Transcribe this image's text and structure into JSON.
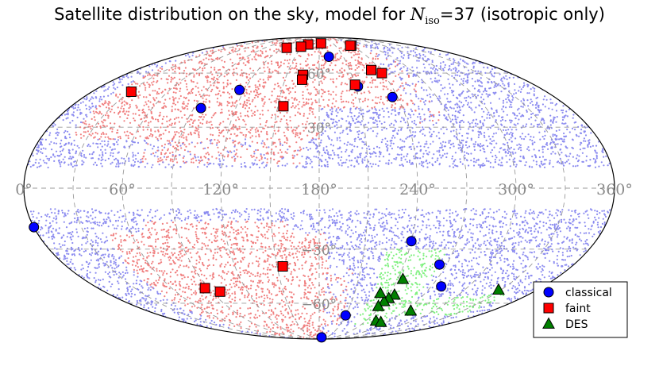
{
  "chart_data": {
    "type": "scatter",
    "projection": "mollweide",
    "title": {
      "prefix": "Satellite distribution on the sky, model for ",
      "symbol": "N",
      "subscript": "iso",
      "suffix": "=37 (isotropic only)"
    },
    "xlabel": "",
    "ylabel": "",
    "grid": true,
    "legend_position": "lower-right",
    "lon_ticks": [
      {
        "value": 360,
        "label": "360°"
      },
      {
        "value": 300,
        "label": "300°"
      },
      {
        "value": 240,
        "label": "240°"
      },
      {
        "value": 180,
        "label": "180°"
      },
      {
        "value": 120,
        "label": "120°"
      },
      {
        "value": 60,
        "label": "60°"
      },
      {
        "value": 0,
        "label": "0°"
      }
    ],
    "lat_ticks": [
      {
        "value": 60,
        "label": "60°"
      },
      {
        "value": 30,
        "label": "30°"
      },
      {
        "value": -30,
        "label": "−30°"
      },
      {
        "value": -60,
        "label": "−60°"
      }
    ],
    "avoidance_zone_deg": 10,
    "background_samples": {
      "blue_color": "#8c8cf0",
      "red_color": "#f08080",
      "green_color": "#80f080"
    },
    "series": [
      {
        "name": "classical",
        "marker": "circle",
        "color": "#0000ff",
        "points": [
          {
            "lon": 192,
            "lat": 71
          },
          {
            "lon": 236,
            "lat": 46
          },
          {
            "lon": 212,
            "lat": 52
          },
          {
            "lon": 116,
            "lat": 50
          },
          {
            "lon": 95,
            "lat": 40
          },
          {
            "lon": 0,
            "lat": -19
          },
          {
            "lon": 240,
            "lat": -26
          },
          {
            "lon": 265,
            "lat": -38
          },
          {
            "lon": 278,
            "lat": -50
          },
          {
            "lon": 210,
            "lat": -68
          },
          {
            "lon": 190,
            "lat": -87
          }
        ]
      },
      {
        "name": "faint",
        "marker": "square",
        "color": "#ff0000",
        "points": [
          {
            "lon": 240,
            "lat": 80
          },
          {
            "lon": 238,
            "lat": 80
          },
          {
            "lon": 184,
            "lat": 82
          },
          {
            "lon": 158,
            "lat": 81
          },
          {
            "lon": 148,
            "lat": 79
          },
          {
            "lon": 126,
            "lat": 78
          },
          {
            "lon": 239,
            "lat": 60
          },
          {
            "lon": 231,
            "lat": 62
          },
          {
            "lon": 210,
            "lat": 53
          },
          {
            "lon": 165,
            "lat": 59
          },
          {
            "lon": 165,
            "lat": 56
          },
          {
            "lon": 154,
            "lat": 41
          },
          {
            "lon": 31,
            "lat": 49
          },
          {
            "lon": 154,
            "lat": -39
          },
          {
            "lon": 97,
            "lat": -53
          },
          {
            "lon": 87,
            "lat": -51
          }
        ]
      },
      {
        "name": "DES",
        "marker": "triangle",
        "color": "#008000",
        "points": [
          {
            "lon": 244,
            "lat": -46
          },
          {
            "lon": 245,
            "lat": -55
          },
          {
            "lon": 242,
            "lat": -57
          },
          {
            "lon": 240,
            "lat": -59
          },
          {
            "lon": 232,
            "lat": -54
          },
          {
            "lon": 238,
            "lat": -62
          },
          {
            "lon": 253,
            "lat": -72
          },
          {
            "lon": 262,
            "lat": -73
          },
          {
            "lon": 276,
            "lat": -65
          },
          {
            "lon": 328,
            "lat": -52
          }
        ]
      }
    ]
  }
}
